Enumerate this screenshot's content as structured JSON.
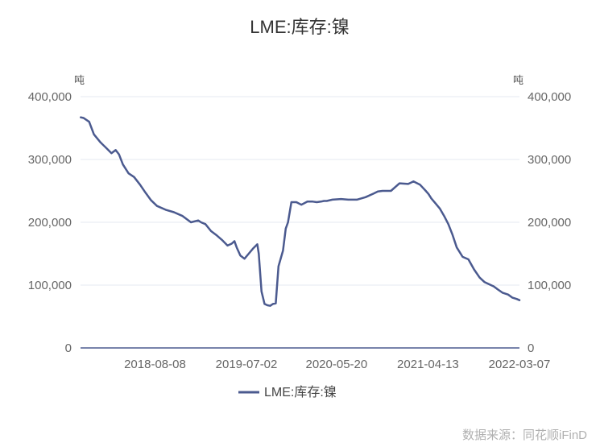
{
  "chart_data": {
    "type": "line",
    "title": "LME:库存:镍",
    "left_unit": "吨",
    "right_unit": "吨",
    "y_ticks": [
      "0",
      "100,000",
      "200,000",
      "300,000",
      "400,000"
    ],
    "ylim": [
      0,
      400000
    ],
    "x_ticks": [
      "2018-08-08",
      "2019-07-02",
      "2020-05-20",
      "2021-04-13",
      "2022-03-07"
    ],
    "x_range": [
      "2017-11-14",
      "2022-03-07"
    ],
    "grid": true,
    "legend_position": "bottom",
    "series": [
      {
        "name": "LME:库存:镍",
        "color": "#4b5a8f",
        "x": [
          "2017-11-15",
          "2017-11-25",
          "2017-12-15",
          "2018-01-01",
          "2018-01-25",
          "2018-02-15",
          "2018-03-05",
          "2018-03-20",
          "2018-04-01",
          "2018-04-15",
          "2018-05-05",
          "2018-05-25",
          "2018-06-15",
          "2018-07-05",
          "2018-07-25",
          "2018-08-15",
          "2018-09-15",
          "2018-10-15",
          "2018-11-15",
          "2018-12-15",
          "2019-01-10",
          "2019-01-20",
          "2019-02-05",
          "2019-02-25",
          "2019-03-15",
          "2019-04-05",
          "2019-04-25",
          "2019-05-10",
          "2019-05-20",
          "2019-05-28",
          "2019-06-10",
          "2019-06-25",
          "2019-07-10",
          "2019-07-25",
          "2019-08-10",
          "2019-08-15",
          "2019-08-25",
          "2019-09-05",
          "2019-09-15",
          "2019-09-25",
          "2019-10-05",
          "2019-10-15",
          "2019-10-25",
          "2019-11-10",
          "2019-11-20",
          "2019-11-28",
          "2019-12-10",
          "2019-12-28",
          "2020-01-15",
          "2020-02-05",
          "2020-02-25",
          "2020-03-10",
          "2020-03-25",
          "2020-04-05",
          "2020-04-15",
          "2020-05-05",
          "2020-06-05",
          "2020-07-01",
          "2020-08-01",
          "2020-09-01",
          "2020-10-01",
          "2020-10-15",
          "2020-11-01",
          "2020-12-01",
          "2021-01-01",
          "2021-02-01",
          "2021-02-20",
          "2021-03-15",
          "2021-04-05",
          "2021-04-15",
          "2021-04-25",
          "2021-05-10",
          "2021-05-25",
          "2021-06-10",
          "2021-06-25",
          "2021-07-10",
          "2021-07-25",
          "2021-08-15",
          "2021-09-05",
          "2021-09-25",
          "2021-10-15",
          "2021-11-01",
          "2021-11-20",
          "2021-12-05",
          "2021-12-20",
          "2022-01-05",
          "2022-01-25",
          "2022-02-10",
          "2022-02-25",
          "2022-03-07"
        ],
        "values": [
          367000,
          366000,
          360000,
          340000,
          327000,
          318000,
          310000,
          315000,
          308000,
          292000,
          278000,
          272000,
          260000,
          247000,
          235000,
          226000,
          220000,
          216000,
          210000,
          200000,
          203000,
          200000,
          197000,
          186000,
          180000,
          172000,
          163000,
          166000,
          170000,
          160000,
          147000,
          142000,
          150000,
          158000,
          165000,
          150000,
          90000,
          70000,
          68000,
          67000,
          70000,
          71000,
          130000,
          155000,
          190000,
          200000,
          232000,
          232000,
          228000,
          233000,
          233000,
          232000,
          233000,
          234000,
          234000,
          236000,
          237000,
          236000,
          236000,
          240000,
          246000,
          249000,
          250000,
          250000,
          262000,
          261000,
          265000,
          260000,
          250000,
          245000,
          238000,
          230000,
          222000,
          210000,
          197000,
          180000,
          160000,
          145000,
          141000,
          125000,
          112000,
          105000,
          101000,
          98000,
          93000,
          88000,
          85000,
          80000,
          78000,
          76000
        ]
      }
    ],
    "source": "数据来源：同花顺iFinD"
  }
}
